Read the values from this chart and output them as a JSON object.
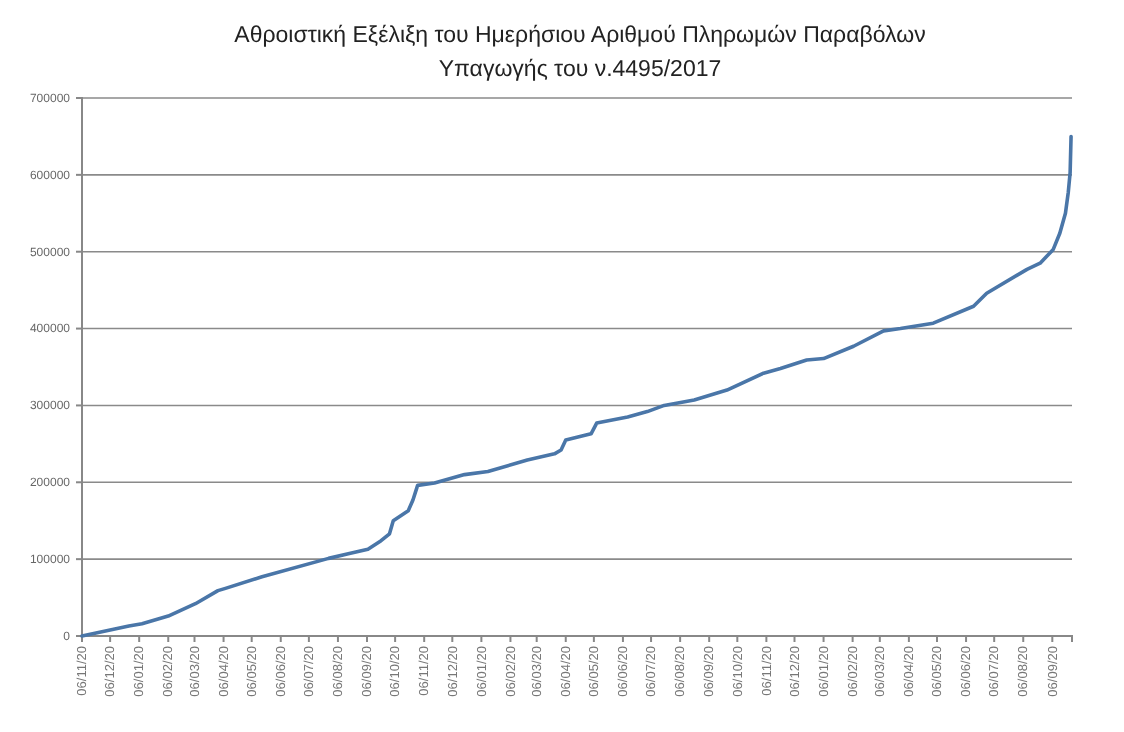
{
  "chart_data": {
    "type": "line",
    "title": "Αθροιστική Εξέλιξη του Ημερήσιου Αριθμού Πληρωμών Παραβόλων Υπαγωγής του ν.4495/2017",
    "x": [
      "2017-11-06",
      "2017-12-26",
      "2018-01-09",
      "2018-02-06",
      "2018-03-07",
      "2018-03-31",
      "2018-04-08",
      "2018-05-17",
      "2018-07-27",
      "2018-08-17",
      "2018-09-07",
      "2018-09-21",
      "2018-09-30",
      "2018-10-04",
      "2018-10-20",
      "2018-10-25",
      "2018-10-30",
      "2018-11-17",
      "2018-12-19",
      "2019-01-13",
      "2019-02-24",
      "2019-03-25",
      "2019-04-01",
      "2019-04-06",
      "2019-05-03",
      "2019-05-09",
      "2019-06-11",
      "2019-07-02",
      "2019-07-20",
      "2019-08-21",
      "2019-09-25",
      "2019-11-03",
      "2019-11-21",
      "2019-12-19",
      "2020-01-06",
      "2020-02-07",
      "2020-03-10",
      "2020-03-28",
      "2020-05-02",
      "2020-06-14",
      "2020-06-28",
      "2020-08-10",
      "2020-08-24",
      "2020-09-07",
      "2020-09-14",
      "2020-09-20",
      "2020-09-23",
      "2020-09-25",
      "2020-09-26"
    ],
    "series": [
      {
        "color": "#4a76a8",
        "values": [
          0,
          13000,
          16000,
          26000,
          42000,
          59000,
          62000,
          77000,
          101000,
          107000,
          113000,
          124000,
          133000,
          150000,
          163000,
          177000,
          196000,
          199000,
          210000,
          214000,
          229000,
          237000,
          242000,
          255000,
          263000,
          277000,
          285000,
          292000,
          300000,
          307000,
          320000,
          342000,
          348000,
          359000,
          361000,
          377000,
          397000,
          400000,
          407000,
          429000,
          446000,
          477000,
          485000,
          503000,
          524000,
          550000,
          577000,
          603000,
          650000
        ]
      }
    ],
    "xlim": [
      "2017-11-06",
      "2020-09-27"
    ],
    "xticks": [
      {
        "value": "2017-11-06",
        "label": "06/11/20"
      },
      {
        "value": "2017-12-06",
        "label": "06/12/20"
      },
      {
        "value": "2018-01-06",
        "label": "06/01/20"
      },
      {
        "value": "2018-02-06",
        "label": "06/02/20"
      },
      {
        "value": "2018-03-06",
        "label": "06/03/20"
      },
      {
        "value": "2018-04-06",
        "label": "06/04/20"
      },
      {
        "value": "2018-05-06",
        "label": "06/05/20"
      },
      {
        "value": "2018-06-06",
        "label": "06/06/20"
      },
      {
        "value": "2018-07-06",
        "label": "06/07/20"
      },
      {
        "value": "2018-08-06",
        "label": "06/08/20"
      },
      {
        "value": "2018-09-06",
        "label": "06/09/20"
      },
      {
        "value": "2018-10-06",
        "label": "06/10/20"
      },
      {
        "value": "2018-11-06",
        "label": "06/11/20"
      },
      {
        "value": "2018-12-06",
        "label": "06/12/20"
      },
      {
        "value": "2019-01-06",
        "label": "06/01/20"
      },
      {
        "value": "2019-02-06",
        "label": "06/02/20"
      },
      {
        "value": "2019-03-06",
        "label": "06/03/20"
      },
      {
        "value": "2019-04-06",
        "label": "06/04/20"
      },
      {
        "value": "2019-05-06",
        "label": "06/05/20"
      },
      {
        "value": "2019-06-06",
        "label": "06/06/20"
      },
      {
        "value": "2019-07-06",
        "label": "06/07/20"
      },
      {
        "value": "2019-08-06",
        "label": "06/08/20"
      },
      {
        "value": "2019-09-06",
        "label": "06/09/20"
      },
      {
        "value": "2019-10-06",
        "label": "06/10/20"
      },
      {
        "value": "2019-11-06",
        "label": "06/11/20"
      },
      {
        "value": "2019-12-06",
        "label": "06/12/20"
      },
      {
        "value": "2020-01-06",
        "label": "06/01/20"
      },
      {
        "value": "2020-02-06",
        "label": "06/02/20"
      },
      {
        "value": "2020-03-06",
        "label": "06/03/20"
      },
      {
        "value": "2020-04-06",
        "label": "06/04/20"
      },
      {
        "value": "2020-05-06",
        "label": "06/05/20"
      },
      {
        "value": "2020-06-06",
        "label": "06/06/20"
      },
      {
        "value": "2020-07-06",
        "label": "06/07/20"
      },
      {
        "value": "2020-08-06",
        "label": "06/08/20"
      },
      {
        "value": "2020-09-06",
        "label": "06/09/20"
      }
    ],
    "ylim": [
      0,
      700000
    ],
    "yticks": [
      0,
      100000,
      200000,
      300000,
      400000,
      500000,
      600000,
      700000
    ],
    "grid": "y",
    "marker": "none",
    "line_style": "solid"
  }
}
